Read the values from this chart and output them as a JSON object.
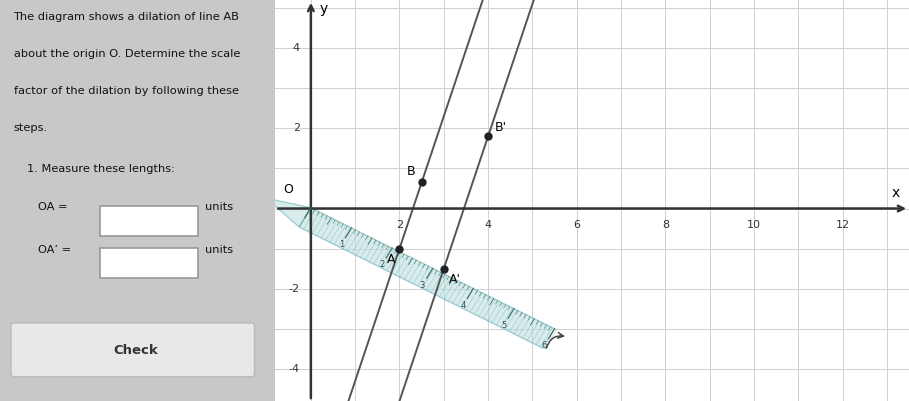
{
  "bg_color": "#c8c8c8",
  "graph_bg": "#ffffff",
  "left_panel_bg": "#e0e0e0",
  "grid_color": "#cccccc",
  "axis_color": "#333333",
  "xlim": [
    -0.8,
    13.5
  ],
  "ylim": [
    -4.8,
    5.2
  ],
  "xticks": [
    2,
    4,
    6,
    8,
    10,
    12
  ],
  "yticks": [
    -4,
    -2,
    2,
    4
  ],
  "origin_label": "O",
  "x_label": "x",
  "y_label": "y",
  "point_A": [
    2,
    -1
  ],
  "point_B": [
    2,
    0.5
  ],
  "point_Aprime": [
    3,
    -1.5
  ],
  "point_Bprime": [
    3.5,
    1.8
  ],
  "line_color": "#555555",
  "ruler_color": "#b8dede",
  "ruler_alpha": 0.55,
  "dot_color": "#222222",
  "label_color": "#222222",
  "title_lines": [
    "The diagram shows a dilation of line AB",
    "about the origin O. Determine the scale",
    "factor of the dilation by following these",
    "steps."
  ],
  "step1": "1. Measure these lengths:",
  "OA_text": "OA =",
  "OAprime_text": "OA’ =",
  "units_text": "units",
  "check_label": "Check"
}
